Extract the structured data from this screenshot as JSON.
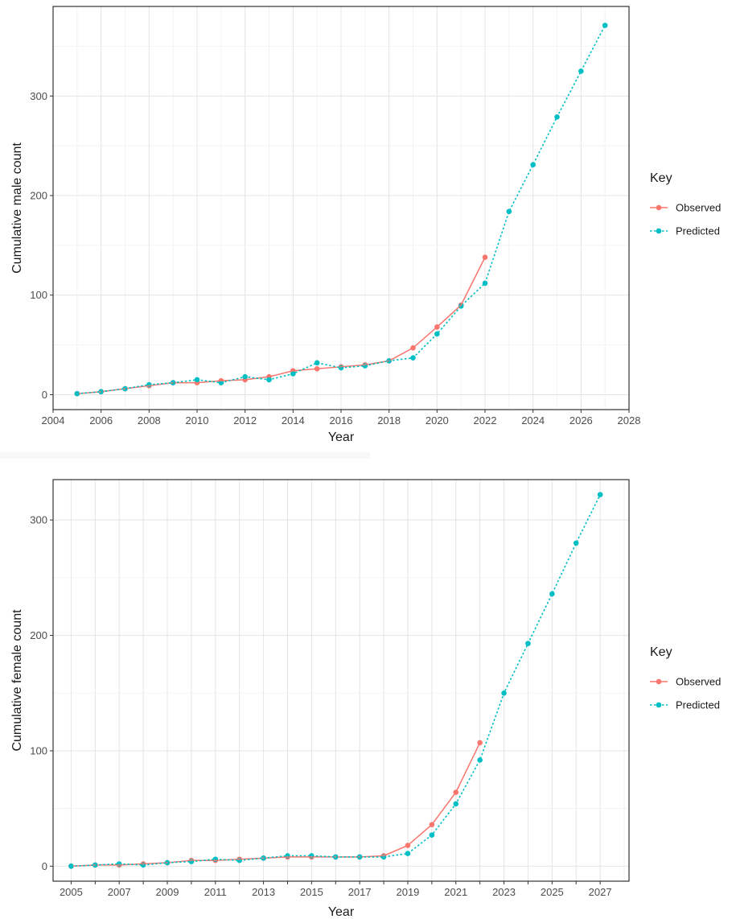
{
  "chart_data": [
    {
      "type": "line",
      "xlabel": "Year",
      "ylabel": "Cumulative male count",
      "xlim": [
        2004,
        2028
      ],
      "ylim": [
        -15,
        390
      ],
      "x_ticks": [
        2004,
        2006,
        2008,
        2010,
        2012,
        2014,
        2016,
        2018,
        2020,
        2022,
        2024,
        2026,
        2028
      ],
      "y_ticks": [
        0,
        100,
        200,
        300
      ],
      "grid": true,
      "legend": {
        "title": "Key",
        "position": "right"
      },
      "series": [
        {
          "name": "Observed",
          "color": "#F8766D",
          "line": "solid",
          "x": [
            2005,
            2006,
            2007,
            2008,
            2009,
            2010,
            2011,
            2012,
            2013,
            2014,
            2015,
            2016,
            2017,
            2018,
            2019,
            2020,
            2021,
            2022
          ],
          "y": [
            1,
            3,
            6,
            9,
            12,
            12,
            14,
            15,
            18,
            24,
            26,
            28,
            30,
            34,
            47,
            68,
            90,
            138
          ]
        },
        {
          "name": "Predicted",
          "color": "#00BFC4",
          "line": "dotted",
          "x": [
            2005,
            2006,
            2007,
            2008,
            2009,
            2010,
            2011,
            2012,
            2013,
            2014,
            2015,
            2016,
            2017,
            2018,
            2019,
            2020,
            2021,
            2022,
            2023,
            2024,
            2025,
            2026,
            2027
          ],
          "y": [
            1,
            3,
            6,
            10,
            12,
            15,
            12,
            18,
            15,
            21,
            32,
            27,
            29,
            34,
            37,
            61,
            89,
            112,
            184,
            231,
            279,
            325,
            371
          ]
        }
      ]
    },
    {
      "type": "line",
      "xlabel": "Year",
      "ylabel": "Cumulative female count",
      "xlim": [
        2004.25,
        2028.2
      ],
      "ylim": [
        -13,
        335
      ],
      "x_ticks": [
        2005,
        2007,
        2009,
        2011,
        2013,
        2015,
        2017,
        2019,
        2021,
        2023,
        2025,
        2027
      ],
      "x_minor_ticks": [
        2006,
        2008,
        2010,
        2012,
        2014,
        2016,
        2018,
        2020,
        2022,
        2024,
        2026
      ],
      "y_ticks": [
        0,
        100,
        200,
        300
      ],
      "grid": true,
      "legend": {
        "title": "Key",
        "position": "right"
      },
      "series": [
        {
          "name": "Observed",
          "color": "#F8766D",
          "line": "solid",
          "x": [
            2005,
            2006,
            2007,
            2008,
            2009,
            2010,
            2011,
            2012,
            2013,
            2014,
            2015,
            2016,
            2017,
            2018,
            2019,
            2020,
            2021,
            2022
          ],
          "y": [
            0,
            1,
            1,
            2,
            3,
            5,
            5,
            6,
            7,
            8,
            8,
            8,
            8,
            9,
            18,
            36,
            64,
            107
          ]
        },
        {
          "name": "Predicted",
          "color": "#00BFC4",
          "line": "dotted",
          "x": [
            2005,
            2006,
            2007,
            2008,
            2009,
            2010,
            2011,
            2012,
            2013,
            2014,
            2015,
            2016,
            2017,
            2018,
            2019,
            2020,
            2021,
            2022,
            2023,
            2024,
            2025,
            2026,
            2027
          ],
          "y": [
            0,
            1,
            2,
            1,
            3,
            4,
            6,
            5,
            7,
            9,
            9,
            8,
            8,
            8,
            11,
            27,
            54,
            92,
            150,
            193,
            236,
            280,
            322
          ]
        }
      ]
    }
  ]
}
